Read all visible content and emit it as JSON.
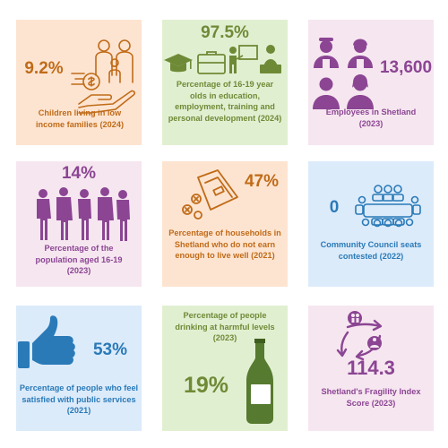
{
  "tiles": [
    {
      "value": "9.2%",
      "caption": "Children living in low income families (2024)",
      "icon": "family-money-icon"
    },
    {
      "value": "97.5%",
      "caption": "Percentage of 16-19 year olds in education, employment, training and personal development (2024)",
      "icon": "education-icons"
    },
    {
      "value": "13,600",
      "caption": "Employees in Shetland (2023)",
      "icon": "workers-icon"
    },
    {
      "value": "14%",
      "caption": "Percentage of the population aged 16-19 (2023)",
      "icon": "young-people-icon"
    },
    {
      "value": "47%",
      "caption": "Percentage of households in Shetland who do not earn enough to live well (2021)",
      "icon": "wallet-coins-icon"
    },
    {
      "value": "0",
      "caption": "Community Council seats contested (2022)",
      "icon": "meeting-table-icon"
    },
    {
      "value": "53%",
      "caption": "Percentage of people who feel satisfied with public services (2021)",
      "icon": "thumbs-up-icon"
    },
    {
      "value": "19%",
      "caption": "Percentage of people drinking at harmful levels (2023)",
      "icon": "wine-bottle-icon"
    },
    {
      "value": "114.3",
      "caption": "Shetland's Fragility Index Score (2023)",
      "icon": "exchange-arrows-icon"
    }
  ],
  "colors": {
    "peach_bg": "#fde4d1",
    "green_bg": "#e1efd1",
    "lilac_bg": "#f6e6f0",
    "blue_bg": "#dcebfa",
    "orange": "#c06b18",
    "purple": "#8b4593",
    "olive": "#6f8a37",
    "teal": "#2a7ab8"
  }
}
